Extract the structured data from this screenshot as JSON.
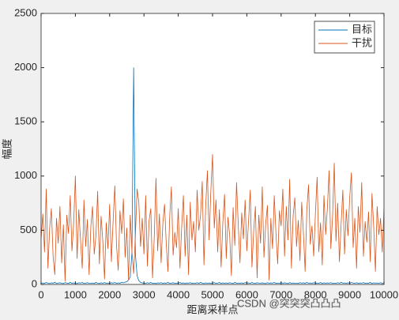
{
  "chart_data": {
    "type": "line",
    "xlabel": "距离采样点",
    "ylabel": "幅度",
    "watermark": "CSDN @突突突凸凸凸",
    "xlim": [
      0,
      10000
    ],
    "xticks": [
      0,
      1000,
      2000,
      3000,
      4000,
      5000,
      6000,
      7000,
      8000,
      9000,
      10000
    ],
    "ylim": [
      0,
      2500
    ],
    "yticks": [
      0,
      500,
      1000,
      1500,
      2000,
      2500
    ],
    "legend": "northeast",
    "x": [
      0,
      50,
      100,
      150,
      200,
      250,
      300,
      350,
      400,
      450,
      500,
      550,
      600,
      650,
      700,
      750,
      800,
      850,
      900,
      950,
      1000,
      1050,
      1100,
      1150,
      1200,
      1250,
      1300,
      1350,
      1400,
      1450,
      1500,
      1550,
      1600,
      1650,
      1700,
      1750,
      1800,
      1850,
      1900,
      1950,
      2000,
      2050,
      2100,
      2150,
      2200,
      2250,
      2300,
      2350,
      2400,
      2450,
      2500,
      2550,
      2600,
      2650,
      2700,
      2750,
      2800,
      2850,
      2900,
      2950,
      3000,
      3050,
      3100,
      3150,
      3200,
      3250,
      3300,
      3350,
      3400,
      3450,
      3500,
      3550,
      3600,
      3650,
      3700,
      3750,
      3800,
      3850,
      3900,
      3950,
      4000,
      4050,
      4100,
      4150,
      4200,
      4250,
      4300,
      4350,
      4400,
      4450,
      4500,
      4550,
      4600,
      4650,
      4700,
      4750,
      4800,
      4850,
      4900,
      4950,
      5000,
      5050,
      5100,
      5150,
      5200,
      5250,
      5300,
      5350,
      5400,
      5450,
      5500,
      5550,
      5600,
      5650,
      5700,
      5750,
      5800,
      5850,
      5900,
      5950,
      6000,
      6050,
      6100,
      6150,
      6200,
      6250,
      6300,
      6350,
      6400,
      6450,
      6500,
      6550,
      6600,
      6650,
      6700,
      6750,
      6800,
      6850,
      6900,
      6950,
      7000,
      7050,
      7100,
      7150,
      7200,
      7250,
      7300,
      7350,
      7400,
      7450,
      7500,
      7550,
      7600,
      7650,
      7700,
      7750,
      7800,
      7850,
      7900,
      7950,
      8000,
      8050,
      8100,
      8150,
      8200,
      8250,
      8300,
      8350,
      8400,
      8450,
      8500,
      8550,
      8600,
      8650,
      8700,
      8750,
      8800,
      8850,
      8900,
      8950,
      9000,
      9050,
      9100,
      9150,
      9200,
      9250,
      9300,
      9350,
      9400,
      9450,
      9500,
      9550,
      9600,
      9650,
      9700,
      9750,
      9800,
      9850,
      9900,
      9950,
      10000
    ],
    "series": [
      {
        "name": "目标",
        "color": "#0072bd",
        "values": [
          10,
          14,
          9,
          18,
          12,
          8,
          15,
          11,
          20,
          9,
          13,
          16,
          10,
          8,
          17,
          12,
          9,
          19,
          11,
          14,
          10,
          8,
          15,
          13,
          18,
          9,
          12,
          16,
          11,
          10,
          14,
          9,
          19,
          12,
          8,
          15,
          11,
          17,
          10,
          13,
          9,
          16,
          12,
          18,
          10,
          14,
          11,
          20,
          15,
          22,
          25,
          40,
          70,
          300,
          2000,
          280,
          80,
          35,
          20,
          14,
          12,
          9,
          16,
          11,
          18,
          10,
          13,
          8,
          15,
          12,
          17,
          9,
          14,
          11,
          19,
          10,
          12,
          16,
          9,
          13,
          11,
          18,
          10,
          15,
          8,
          14,
          12,
          17,
          9,
          13,
          11,
          16,
          10,
          19,
          12,
          8,
          15,
          11,
          14,
          9,
          13,
          17,
          10,
          12,
          18,
          9,
          15,
          11,
          14,
          10,
          16,
          12,
          8,
          19,
          11,
          13,
          10,
          15,
          9,
          17,
          12,
          14,
          10,
          18,
          11,
          9,
          16,
          13,
          12,
          15,
          10,
          8,
          17,
          11,
          14,
          12,
          19,
          9,
          13,
          10,
          16,
          11,
          15,
          12,
          8,
          18,
          10,
          14,
          11,
          13,
          9,
          17,
          12,
          15,
          10,
          19,
          11,
          14,
          9,
          16,
          12,
          13,
          10,
          18,
          8,
          15,
          11,
          14,
          12,
          17,
          9,
          13,
          10,
          16,
          11,
          20,
          12,
          14,
          9,
          15,
          10,
          18,
          13,
          11,
          16,
          9,
          14,
          12,
          17,
          10,
          13,
          11,
          19,
          8,
          15,
          12,
          14,
          10,
          16,
          11,
          13
        ]
      },
      {
        "name": "干扰",
        "color": "#d95319",
        "values": [
          420,
          650,
          300,
          880,
          150,
          520,
          700,
          260,
          90,
          610,
          380,
          720,
          200,
          550,
          30,
          640,
          470,
          820,
          310,
          560,
          1000,
          240,
          690,
          410,
          150,
          780,
          350,
          600,
          90,
          530,
          720,
          280,
          450,
          860,
          190,
          630,
          400,
          50,
          570,
          330,
          740,
          210,
          580,
          910,
          360,
          130,
          680,
          470,
          790,
          250,
          520,
          40,
          640,
          300,
          100,
          450,
          880,
          760,
          350,
          610,
          280,
          820,
          170,
          590,
          700,
          60,
          430,
          980,
          310,
          650,
          200,
          560,
          740,
          380,
          120,
          620,
          900,
          270,
          480,
          340,
          700,
          150,
          530,
          820,
          260,
          640,
          90,
          760,
          410,
          580,
          300,
          870,
          500,
          640,
          950,
          180,
          720,
          1050,
          410,
          860,
          1200,
          520,
          780,
          300,
          690,
          160,
          570,
          830,
          240,
          620,
          450,
          80,
          710,
          360,
          940,
          550,
          200,
          660,
          420,
          780,
          310,
          580,
          870,
          160,
          490,
          720,
          60,
          640,
          380,
          900,
          250,
          560,
          730,
          40,
          610,
          330,
          820,
          470,
          190,
          680,
          540,
          880,
          260,
          720,
          410,
          970,
          150,
          630,
          800,
          350,
          590,
          220,
          760,
          480,
          120,
          690,
          920,
          370,
          540,
          260,
          650,
          990,
          300,
          570,
          180,
          820,
          460,
          710,
          1050,
          330,
          620,
          1120,
          400,
          750,
          210,
          560,
          870,
          280,
          690,
          450,
          800,
          1030,
          340,
          610,
          150,
          720,
          480,
          940,
          260,
          580,
          390,
          670,
          210,
          840,
          530,
          120,
          720,
          460,
          610,
          300,
          700
        ]
      }
    ]
  }
}
